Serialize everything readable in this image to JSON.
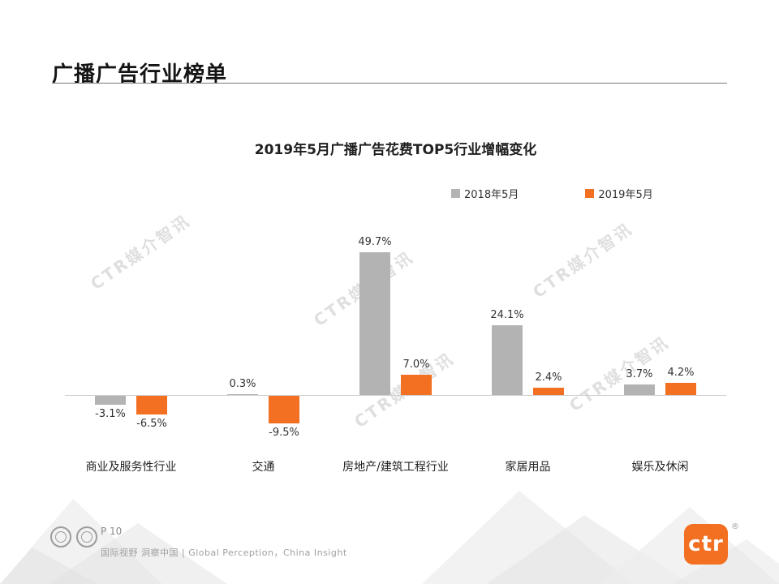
{
  "header": {
    "title": "广播广告行业榜单"
  },
  "chart": {
    "title": "2019年5月广播广告花费TOP5行业增幅变化",
    "legend": [
      {
        "label": "2018年5月",
        "color": "#b3b3b3"
      },
      {
        "label": "2019年5月",
        "color": "#f36f21"
      }
    ]
  },
  "chart_data": {
    "type": "bar",
    "title": "2019年5月广播广告花费TOP5行业增幅变化",
    "categories": [
      "商业及服务性行业",
      "交通",
      "房地产/建筑工程行业",
      "家居用品",
      "娱乐及休闲"
    ],
    "series": [
      {
        "name": "2018年5月",
        "color": "#b3b3b3",
        "values": [
          -3.1,
          0.3,
          49.7,
          24.1,
          3.7
        ]
      },
      {
        "name": "2019年5月",
        "color": "#f36f21",
        "values": [
          -6.5,
          -9.5,
          7.0,
          2.4,
          4.2
        ]
      }
    ],
    "value_suffix": "%",
    "xlabel": "",
    "ylabel": "",
    "ylim": [
      -15,
      55
    ],
    "grid": false,
    "legend_position": "top-right",
    "data_labels": true
  },
  "watermark": {
    "text": "CTR媒介智讯"
  },
  "footer": {
    "page_number": "P 10",
    "tagline": "国际视野 洞察中国 | Global Perception，China Insight",
    "logo_text": "ctr",
    "logo_reg": "®",
    "brand_color": "#f36f21"
  }
}
